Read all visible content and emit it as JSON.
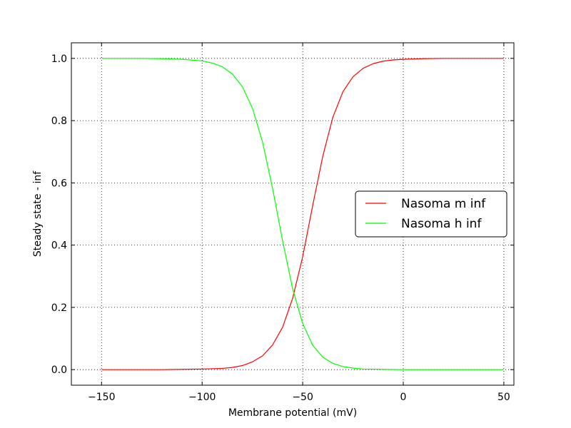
{
  "chart_data": {
    "type": "line",
    "xlabel": "Membrane potential (mV)",
    "ylabel": "Steady state - inf",
    "xlim": [
      -165,
      55
    ],
    "ylim": [
      -0.05,
      1.05
    ],
    "xticks": [
      -150,
      -100,
      -50,
      0,
      50
    ],
    "xtick_labels": [
      "−150",
      "−100",
      "−50",
      "0",
      "50"
    ],
    "yticks": [
      0.0,
      0.2,
      0.4,
      0.6,
      0.8,
      1.0
    ],
    "ytick_labels": [
      "0.0",
      "0.2",
      "0.4",
      "0.6",
      "0.8",
      "1.0"
    ],
    "grid": true,
    "legend_position": "center-right",
    "series": [
      {
        "name": "Nasoma m inf",
        "color": "#ff0000",
        "x": [
          -150,
          -140,
          -130,
          -120,
          -110,
          -100,
          -90,
          -85,
          -80,
          -75,
          -70,
          -65,
          -60,
          -55,
          -50,
          -45,
          -40,
          -35,
          -30,
          -25,
          -20,
          -15,
          -10,
          -5,
          0,
          10,
          20,
          30,
          40,
          50
        ],
        "y": [
          0.0,
          0.0,
          0.0,
          0.0,
          0.001,
          0.002,
          0.004,
          0.007,
          0.013,
          0.025,
          0.044,
          0.079,
          0.136,
          0.229,
          0.363,
          0.528,
          0.686,
          0.811,
          0.893,
          0.941,
          0.968,
          0.983,
          0.991,
          0.995,
          0.997,
          0.999,
          1.0,
          1.0,
          1.0,
          1.0
        ]
      },
      {
        "name": "Nasoma h inf",
        "color": "#00ff00",
        "x": [
          -150,
          -140,
          -130,
          -120,
          -110,
          -100,
          -95,
          -90,
          -85,
          -80,
          -75,
          -70,
          -65,
          -60,
          -55,
          -50,
          -45,
          -40,
          -35,
          -30,
          -25,
          -20,
          -10,
          0,
          10,
          20,
          30,
          40,
          50
        ],
        "y": [
          1.0,
          1.0,
          1.0,
          0.999,
          0.997,
          0.992,
          0.985,
          0.973,
          0.95,
          0.909,
          0.84,
          0.732,
          0.583,
          0.414,
          0.26,
          0.148,
          0.078,
          0.04,
          0.02,
          0.01,
          0.005,
          0.002,
          0.001,
          0.0,
          0.0,
          0.0,
          0.0,
          0.0,
          0.0
        ]
      }
    ]
  }
}
